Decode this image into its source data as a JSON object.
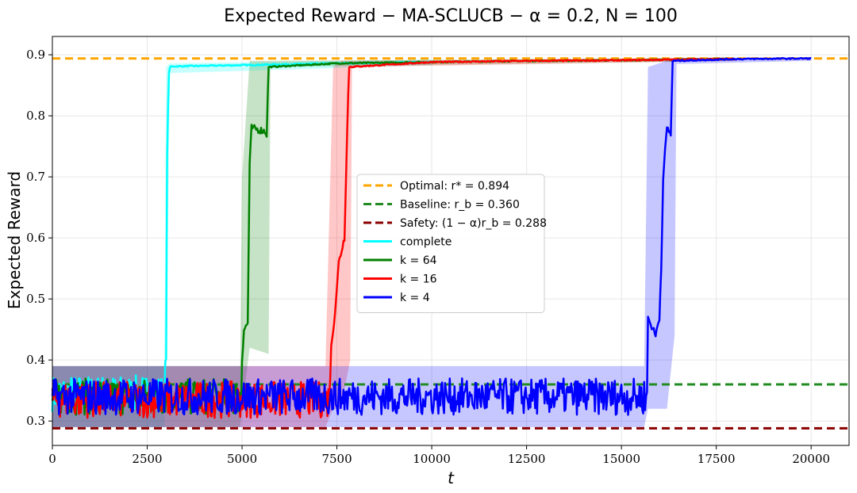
{
  "chart_data": {
    "type": "line",
    "title": "Expected Reward − MA-SCLUCB − α = 0.2, N = 100",
    "xlabel": "t",
    "ylabel": "Expected Reward",
    "xlim": [
      0,
      21000
    ],
    "ylim": [
      0.26,
      0.93
    ],
    "xticks": [
      0,
      2500,
      5000,
      7500,
      10000,
      12500,
      15000,
      17500,
      20000
    ],
    "yticks": [
      0.3,
      0.4,
      0.5,
      0.6,
      0.7,
      0.8,
      0.9
    ],
    "grid": true,
    "legend_position": "center",
    "reference_lines": [
      {
        "name": "Optimal: r* = 0.894",
        "y": 0.894,
        "color": "#ffa500",
        "style": "dashed"
      },
      {
        "name": "Baseline: r_b = 0.360",
        "y": 0.36,
        "color": "#228b22",
        "style": "dashed"
      },
      {
        "name": "Safety: (1 − α)r_b = 0.288",
        "y": 0.288,
        "color": "#8b0000",
        "style": "dashed"
      }
    ],
    "series": [
      {
        "name": "complete",
        "color": "#00ffff",
        "band_color": "#00ffff",
        "points": [
          [
            0,
            0.345
          ],
          [
            2950,
            0.345
          ],
          [
            3000,
            0.4
          ],
          [
            3010,
            0.67
          ],
          [
            3050,
            0.82
          ],
          [
            3080,
            0.88
          ],
          [
            3200,
            0.881
          ],
          [
            5000,
            0.883
          ],
          [
            7500,
            0.886
          ],
          [
            10000,
            0.888
          ]
        ],
        "band": [
          [
            0,
            0.29,
            0.39
          ],
          [
            2950,
            0.29,
            0.39
          ],
          [
            3000,
            0.35,
            0.88
          ],
          [
            3100,
            0.87,
            0.886
          ],
          [
            10000,
            0.883,
            0.892
          ]
        ]
      },
      {
        "name": "k = 64",
        "color": "#008000",
        "band_color": "#008000",
        "points": [
          [
            0,
            0.34
          ],
          [
            4980,
            0.34
          ],
          [
            5000,
            0.4
          ],
          [
            5050,
            0.45
          ],
          [
            5150,
            0.46
          ],
          [
            5200,
            0.72
          ],
          [
            5250,
            0.78
          ],
          [
            5600,
            0.775
          ],
          [
            5650,
            0.77
          ],
          [
            5700,
            0.88
          ],
          [
            7500,
            0.886
          ],
          [
            10000,
            0.888
          ],
          [
            12500,
            0.89
          ],
          [
            15000,
            0.891
          ],
          [
            17500,
            0.893
          ],
          [
            18000,
            0.893
          ]
        ],
        "band": [
          [
            0,
            0.29,
            0.39
          ],
          [
            4950,
            0.29,
            0.39
          ],
          [
            5000,
            0.32,
            0.7
          ],
          [
            5200,
            0.42,
            0.89
          ],
          [
            5700,
            0.41,
            0.89
          ],
          [
            5750,
            0.88,
            0.89
          ],
          [
            18000,
            0.89,
            0.895
          ]
        ]
      },
      {
        "name": "k = 16",
        "color": "#ff0000",
        "band_color": "#ff0000",
        "points": [
          [
            0,
            0.335
          ],
          [
            7280,
            0.335
          ],
          [
            7300,
            0.36
          ],
          [
            7350,
            0.42
          ],
          [
            7450,
            0.48
          ],
          [
            7550,
            0.56
          ],
          [
            7700,
            0.6
          ],
          [
            7760,
            0.75
          ],
          [
            7820,
            0.88
          ],
          [
            10000,
            0.888
          ],
          [
            12500,
            0.89
          ],
          [
            15000,
            0.891
          ],
          [
            17500,
            0.893
          ],
          [
            18000,
            0.893
          ]
        ],
        "band": [
          [
            0,
            0.29,
            0.39
          ],
          [
            7200,
            0.29,
            0.39
          ],
          [
            7400,
            0.32,
            0.88
          ],
          [
            7600,
            0.32,
            0.89
          ],
          [
            7850,
            0.4,
            0.89
          ],
          [
            7900,
            0.88,
            0.89
          ],
          [
            18000,
            0.89,
            0.895
          ]
        ]
      },
      {
        "name": "k = 4",
        "color": "#0000ff",
        "band_color": "#0000ff",
        "points": [
          [
            0,
            0.34
          ],
          [
            15680,
            0.34
          ],
          [
            15700,
            0.47
          ],
          [
            15900,
            0.44
          ],
          [
            16000,
            0.47
          ],
          [
            16050,
            0.55
          ],
          [
            16100,
            0.7
          ],
          [
            16200,
            0.78
          ],
          [
            16300,
            0.77
          ],
          [
            16350,
            0.89
          ],
          [
            18000,
            0.893
          ],
          [
            20000,
            0.894
          ]
        ],
        "band": [
          [
            0,
            0.29,
            0.39
          ],
          [
            15600,
            0.29,
            0.39
          ],
          [
            15700,
            0.32,
            0.88
          ],
          [
            16200,
            0.32,
            0.89
          ],
          [
            16400,
            0.44,
            0.89
          ],
          [
            16450,
            0.885,
            0.895
          ],
          [
            20000,
            0.89,
            0.896
          ]
        ]
      }
    ]
  }
}
